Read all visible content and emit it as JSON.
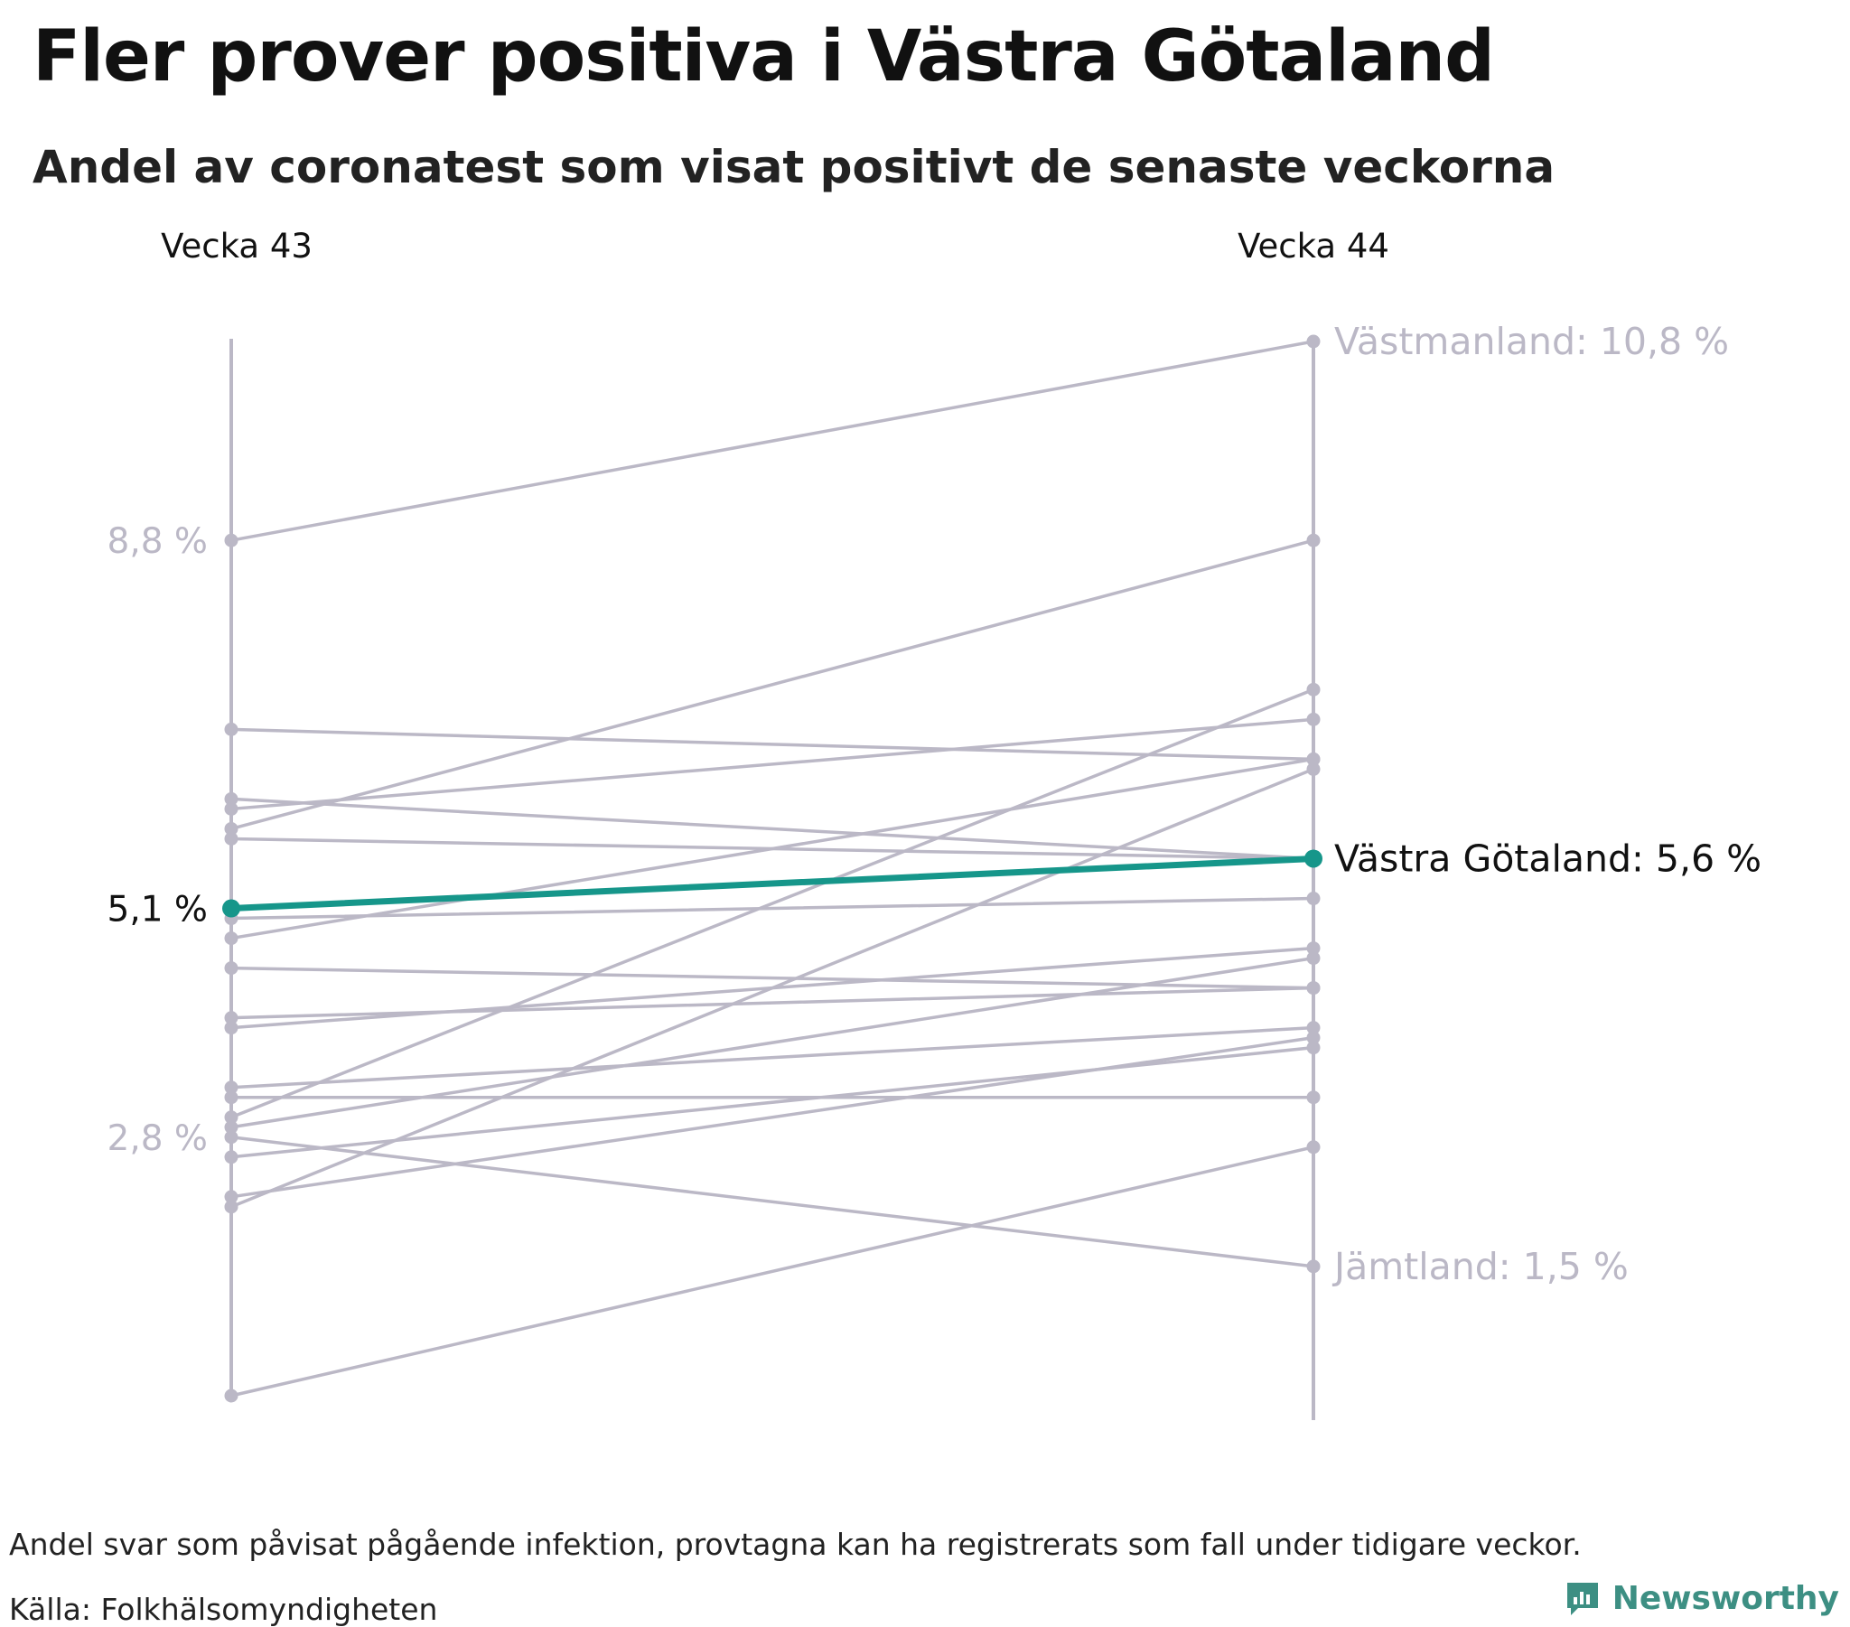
{
  "title": "Fler prover positiva i Västra Götaland",
  "subtitle": "Andel av coronatest som visat positivt de senaste veckorna",
  "footnote": "Andel svar som påvisat pågående infektion, provtagna kan ha registrerats som fall under tidigare veckor.",
  "source": "Källa: Folkhälsomyndigheten",
  "brand": "Newsworthy",
  "colors": {
    "highlight": "#16968a",
    "muted": "#bbb8c6",
    "text": "#111111",
    "brand": "#3d8f83"
  },
  "chart_data": {
    "type": "slope",
    "title": "Fler prover positiva i Västra Götaland",
    "subtitle": "Andel av coronatest som visat positivt de senaste veckorna",
    "columns": [
      "Vecka 43",
      "Vecka 44"
    ],
    "unit": "%",
    "ylim": [
      0.2,
      10.8
    ],
    "left_labels": [
      {
        "value": 8.8,
        "text": "8,8 %",
        "highlight": false
      },
      {
        "value": 5.1,
        "text": "5,1 %",
        "highlight": true
      },
      {
        "value": 2.8,
        "text": "2,8 %",
        "highlight": false
      }
    ],
    "right_labels": [
      {
        "value": 10.8,
        "text": "Västmanland: 10,8 %",
        "highlight": false
      },
      {
        "value": 5.6,
        "text": "Västra Götaland: 5,6 %",
        "highlight": true
      },
      {
        "value": 1.5,
        "text": "Jämtland: 1,5 %",
        "highlight": false
      }
    ],
    "series": [
      {
        "name": "Västmanland",
        "values": [
          8.8,
          10.8
        ]
      },
      {
        "name": "Jämtland",
        "values": [
          2.8,
          1.5
        ]
      },
      {
        "name": "Västra Götaland",
        "values": [
          5.1,
          5.6
        ],
        "highlight": true
      },
      {
        "name": "",
        "values": [
          5.9,
          8.8
        ]
      },
      {
        "name": "",
        "values": [
          6.9,
          6.6
        ]
      },
      {
        "name": "",
        "values": [
          6.2,
          5.6
        ]
      },
      {
        "name": "",
        "values": [
          6.1,
          7.0
        ]
      },
      {
        "name": "",
        "values": [
          5.8,
          5.6
        ]
      },
      {
        "name": "",
        "values": [
          5.0,
          5.2
        ]
      },
      {
        "name": "",
        "values": [
          4.8,
          6.6
        ]
      },
      {
        "name": "",
        "values": [
          4.5,
          4.3
        ]
      },
      {
        "name": "",
        "values": [
          4.0,
          4.3
        ]
      },
      {
        "name": "",
        "values": [
          3.9,
          4.7
        ]
      },
      {
        "name": "",
        "values": [
          3.3,
          3.9
        ]
      },
      {
        "name": "",
        "values": [
          3.2,
          3.2
        ]
      },
      {
        "name": "",
        "values": [
          3.0,
          7.3
        ]
      },
      {
        "name": "",
        "values": [
          2.9,
          4.6
        ]
      },
      {
        "name": "",
        "values": [
          2.6,
          3.7
        ]
      },
      {
        "name": "",
        "values": [
          2.2,
          3.8
        ]
      },
      {
        "name": "",
        "values": [
          2.1,
          6.5
        ]
      },
      {
        "name": "",
        "values": [
          0.2,
          2.7
        ]
      }
    ]
  }
}
